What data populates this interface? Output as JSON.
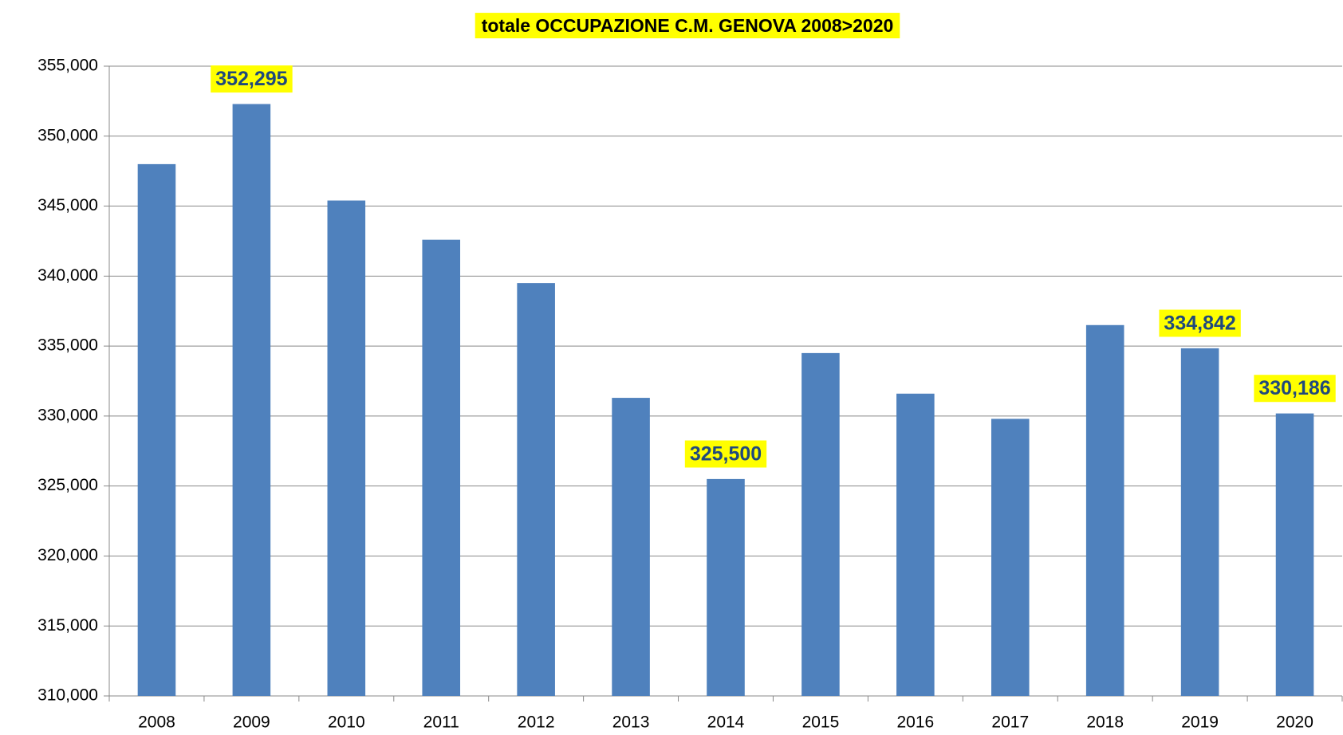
{
  "chart_data": {
    "type": "bar",
    "title": "totale OCCUPAZIONE C.M. GENOVA 2008>2020",
    "categories": [
      "2008",
      "2009",
      "2010",
      "2011",
      "2012",
      "2013",
      "2014",
      "2015",
      "2016",
      "2017",
      "2018",
      "2019",
      "2020"
    ],
    "values": [
      348000,
      352295,
      345400,
      342600,
      339500,
      331300,
      325500,
      334500,
      331600,
      329800,
      336500,
      334842,
      330186
    ],
    "value_labels": [
      null,
      "352,295",
      null,
      null,
      null,
      null,
      "325,500",
      null,
      null,
      null,
      null,
      "334,842",
      "330,186"
    ],
    "color": "#4f81bd",
    "ylim": [
      310000,
      355000
    ],
    "yticks": [
      {
        "value": 310000,
        "label": "310,000"
      },
      {
        "value": 315000,
        "label": "315,000"
      },
      {
        "value": 320000,
        "label": "320,000"
      },
      {
        "value": 325000,
        "label": "325,000"
      },
      {
        "value": 330000,
        "label": "330,000"
      },
      {
        "value": 335000,
        "label": "335,000"
      },
      {
        "value": 340000,
        "label": "340,000"
      },
      {
        "value": 345000,
        "label": "345,000"
      },
      {
        "value": 350000,
        "label": "350,000"
      },
      {
        "value": 355000,
        "label": "355,000"
      }
    ],
    "grid": true
  }
}
